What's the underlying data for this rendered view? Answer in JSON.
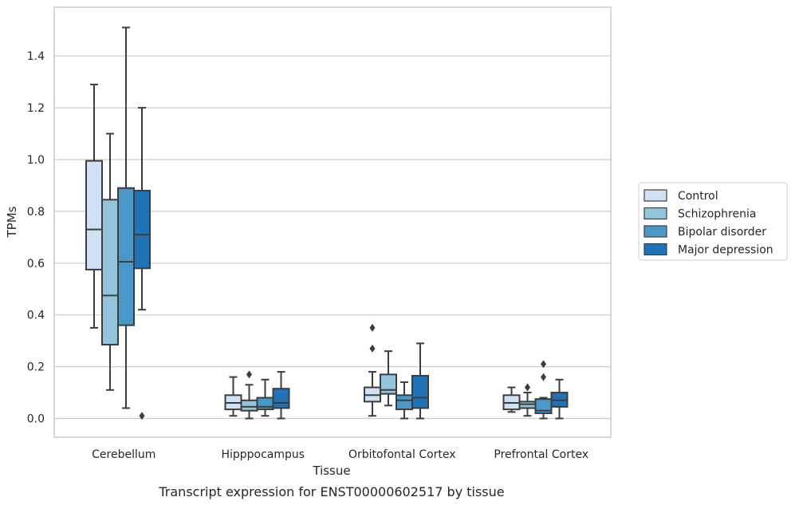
{
  "chart_data": {
    "type": "box",
    "caption": "Transcript expression for ENST00000602517 by tissue",
    "xlabel": "Tissue",
    "ylabel": "TPMs",
    "ylim": [
      -0.07,
      1.6
    ],
    "yticks": [
      0.0,
      0.2,
      0.4,
      0.6,
      0.8,
      1.0,
      1.2,
      1.4
    ],
    "ytick_labels": [
      "0.0",
      "0.2",
      "0.4",
      "0.6",
      "0.8",
      "1.0",
      "1.2",
      "1.4"
    ],
    "grid": true,
    "legend_position": "right",
    "categories": [
      "Cerebellum",
      "Hipppocampus",
      "Orbitofontal Cortex",
      "Prefrontal Cortex"
    ],
    "series": [
      {
        "name": "Control",
        "color": "#cfe1f2",
        "boxes": [
          {
            "whisker_low": 0.35,
            "q1": 0.575,
            "median": 0.73,
            "q3": 0.995,
            "whisker_high": 1.29,
            "outliers": []
          },
          {
            "whisker_low": 0.01,
            "q1": 0.035,
            "median": 0.06,
            "q3": 0.09,
            "whisker_high": 0.16,
            "outliers": []
          },
          {
            "whisker_low": 0.01,
            "q1": 0.065,
            "median": 0.09,
            "q3": 0.12,
            "whisker_high": 0.18,
            "outliers": [
              0.27,
              0.35
            ]
          },
          {
            "whisker_low": 0.025,
            "q1": 0.035,
            "median": 0.06,
            "q3": 0.09,
            "whisker_high": 0.12,
            "outliers": []
          }
        ]
      },
      {
        "name": "Schizophrenia",
        "color": "#93c4de",
        "boxes": [
          {
            "whisker_low": 0.11,
            "q1": 0.285,
            "median": 0.475,
            "q3": 0.845,
            "whisker_high": 1.1,
            "outliers": []
          },
          {
            "whisker_low": 0.0,
            "q1": 0.03,
            "median": 0.045,
            "q3": 0.07,
            "whisker_high": 0.13,
            "outliers": [
              0.17
            ]
          },
          {
            "whisker_low": 0.05,
            "q1": 0.095,
            "median": 0.11,
            "q3": 0.17,
            "whisker_high": 0.26,
            "outliers": []
          },
          {
            "whisker_low": 0.01,
            "q1": 0.04,
            "median": 0.055,
            "q3": 0.065,
            "whisker_high": 0.1,
            "outliers": [
              0.12
            ]
          }
        ]
      },
      {
        "name": "Bipolar disorder",
        "color": "#4a98c9",
        "boxes": [
          {
            "whisker_low": 0.04,
            "q1": 0.36,
            "median": 0.605,
            "q3": 0.89,
            "whisker_high": 1.51,
            "outliers": []
          },
          {
            "whisker_low": 0.01,
            "q1": 0.035,
            "median": 0.045,
            "q3": 0.08,
            "whisker_high": 0.15,
            "outliers": []
          },
          {
            "whisker_low": 0.0,
            "q1": 0.035,
            "median": 0.07,
            "q3": 0.09,
            "whisker_high": 0.14,
            "outliers": []
          },
          {
            "whisker_low": 0.0,
            "q1": 0.02,
            "median": 0.03,
            "q3": 0.075,
            "whisker_high": 0.08,
            "outliers": [
              0.16,
              0.21
            ]
          }
        ]
      },
      {
        "name": "Major depression",
        "color": "#2171b5",
        "boxes": [
          {
            "whisker_low": 0.42,
            "q1": 0.58,
            "median": 0.71,
            "q3": 0.88,
            "whisker_high": 1.2,
            "outliers": [
              0.01
            ]
          },
          {
            "whisker_low": 0.0,
            "q1": 0.04,
            "median": 0.06,
            "q3": 0.115,
            "whisker_high": 0.18,
            "outliers": []
          },
          {
            "whisker_low": 0.0,
            "q1": 0.04,
            "median": 0.08,
            "q3": 0.165,
            "whisker_high": 0.29,
            "outliers": []
          },
          {
            "whisker_low": 0.0,
            "q1": 0.045,
            "median": 0.07,
            "q3": 0.1,
            "whisker_high": 0.15,
            "outliers": []
          }
        ]
      }
    ]
  }
}
